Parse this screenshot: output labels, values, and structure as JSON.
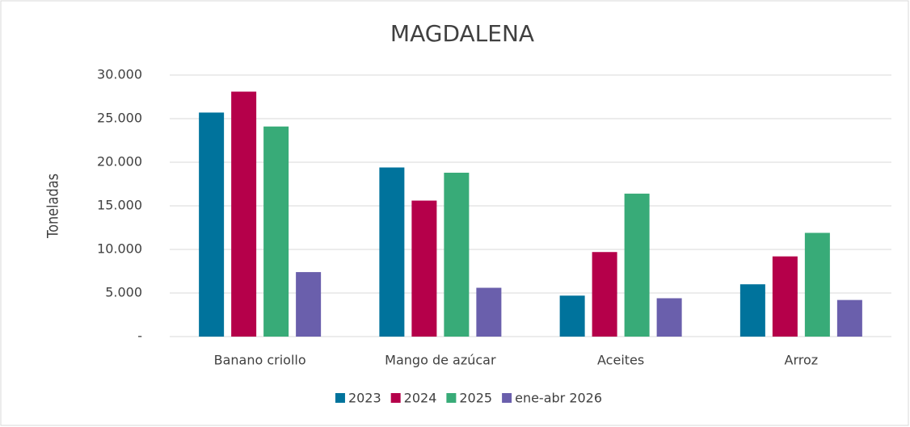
{
  "chart_data": {
    "type": "bar",
    "title": "MAGDALENA",
    "y_label": "Toneladas",
    "categories": [
      "Banano criollo",
      "Mango de azúcar",
      "Aceites",
      "Arroz"
    ],
    "series": [
      {
        "name": "2023",
        "color": "#00739c",
        "values": [
          25700,
          19400,
          4700,
          6000
        ]
      },
      {
        "name": "2024",
        "color": "#b5004a",
        "values": [
          28100,
          15600,
          9700,
          9200
        ]
      },
      {
        "name": "2025",
        "color": "#38ab78",
        "values": [
          24100,
          18800,
          16400,
          11900
        ]
      },
      {
        "name": "ene-abr 2026",
        "color": "#6a5fac",
        "values": [
          7400,
          5600,
          4400,
          4200
        ]
      }
    ],
    "ylim": [
      0,
      30000
    ],
    "yticks": [
      {
        "value": 0,
        "label": "-"
      },
      {
        "value": 5000,
        "label": "5.000"
      },
      {
        "value": 10000,
        "label": "10.000"
      },
      {
        "value": 15000,
        "label": "15.000"
      },
      {
        "value": 20000,
        "label": "20.000"
      },
      {
        "value": 25000,
        "label": "25.000"
      },
      {
        "value": 30000,
        "label": "30.000"
      }
    ],
    "grid": true,
    "legend": "bottom"
  }
}
